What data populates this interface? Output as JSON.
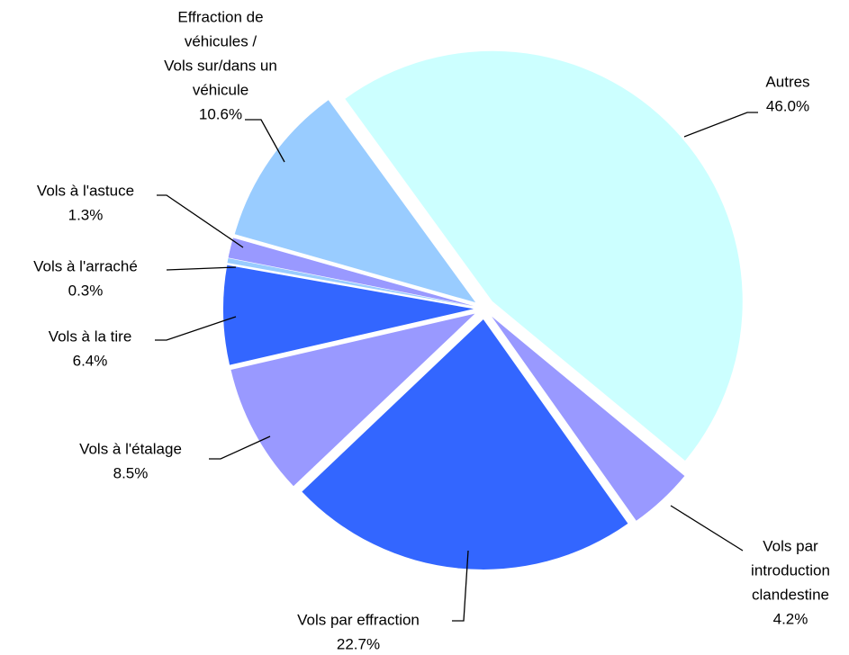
{
  "chart_data": {
    "type": "pie",
    "categories": [
      [
        "Autres"
      ],
      [
        "Vols par",
        "introduction",
        "clandestine"
      ],
      [
        "Vols par effraction"
      ],
      [
        "Vols à l'étalage"
      ],
      [
        "Vols à la tire"
      ],
      [
        "Vols à l'arraché"
      ],
      [
        "Vols à l'astuce"
      ],
      [
        "Effraction de",
        "véhicules /",
        "Vols sur/dans un",
        "véhicule"
      ]
    ],
    "values": [
      46.0,
      4.2,
      22.7,
      8.5,
      6.4,
      0.3,
      1.3,
      10.6
    ],
    "value_labels": [
      "46.0%",
      "4.2%",
      "22.7%",
      "8.5%",
      "6.4%",
      "0.3%",
      "1.3%",
      "10.6%"
    ],
    "colors": [
      "#ccffff",
      "#9999ff",
      "#3366ff",
      "#9999ff",
      "#3366ff",
      "#99ccff",
      "#9999ff",
      "#99ccff"
    ]
  }
}
